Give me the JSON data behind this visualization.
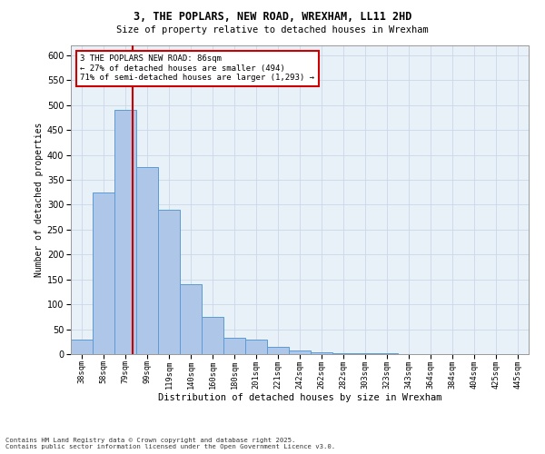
{
  "title_line1": "3, THE POPLARS, NEW ROAD, WREXHAM, LL11 2HD",
  "title_line2": "Size of property relative to detached houses in Wrexham",
  "xlabel": "Distribution of detached houses by size in Wrexham",
  "ylabel": "Number of detached properties",
  "categories": [
    "38sqm",
    "58sqm",
    "79sqm",
    "99sqm",
    "119sqm",
    "140sqm",
    "160sqm",
    "180sqm",
    "201sqm",
    "221sqm",
    "242sqm",
    "262sqm",
    "282sqm",
    "303sqm",
    "323sqm",
    "343sqm",
    "364sqm",
    "384sqm",
    "404sqm",
    "425sqm",
    "445sqm"
  ],
  "values": [
    30,
    325,
    490,
    375,
    290,
    140,
    75,
    32,
    30,
    15,
    7,
    4,
    2,
    2,
    1,
    0,
    0,
    0,
    0,
    0,
    0
  ],
  "bar_color": "#aec6e8",
  "bar_edge_color": "#5b9bd5",
  "grid_color": "#c8d8e8",
  "background_color": "#e8f0f8",
  "annotation_box_text": "3 THE POPLARS NEW ROAD: 86sqm\n← 27% of detached houses are smaller (494)\n71% of semi-detached houses are larger (1,293) →",
  "annotation_box_color": "#ffffff",
  "annotation_box_edge_color": "#cc0000",
  "property_line_color": "#cc0000",
  "footer_text": "Contains HM Land Registry data © Crown copyright and database right 2025.\nContains public sector information licensed under the Open Government Licence v3.0.",
  "ylim": [
    0,
    620
  ],
  "yticks": [
    0,
    50,
    100,
    150,
    200,
    250,
    300,
    350,
    400,
    450,
    500,
    550,
    600
  ]
}
